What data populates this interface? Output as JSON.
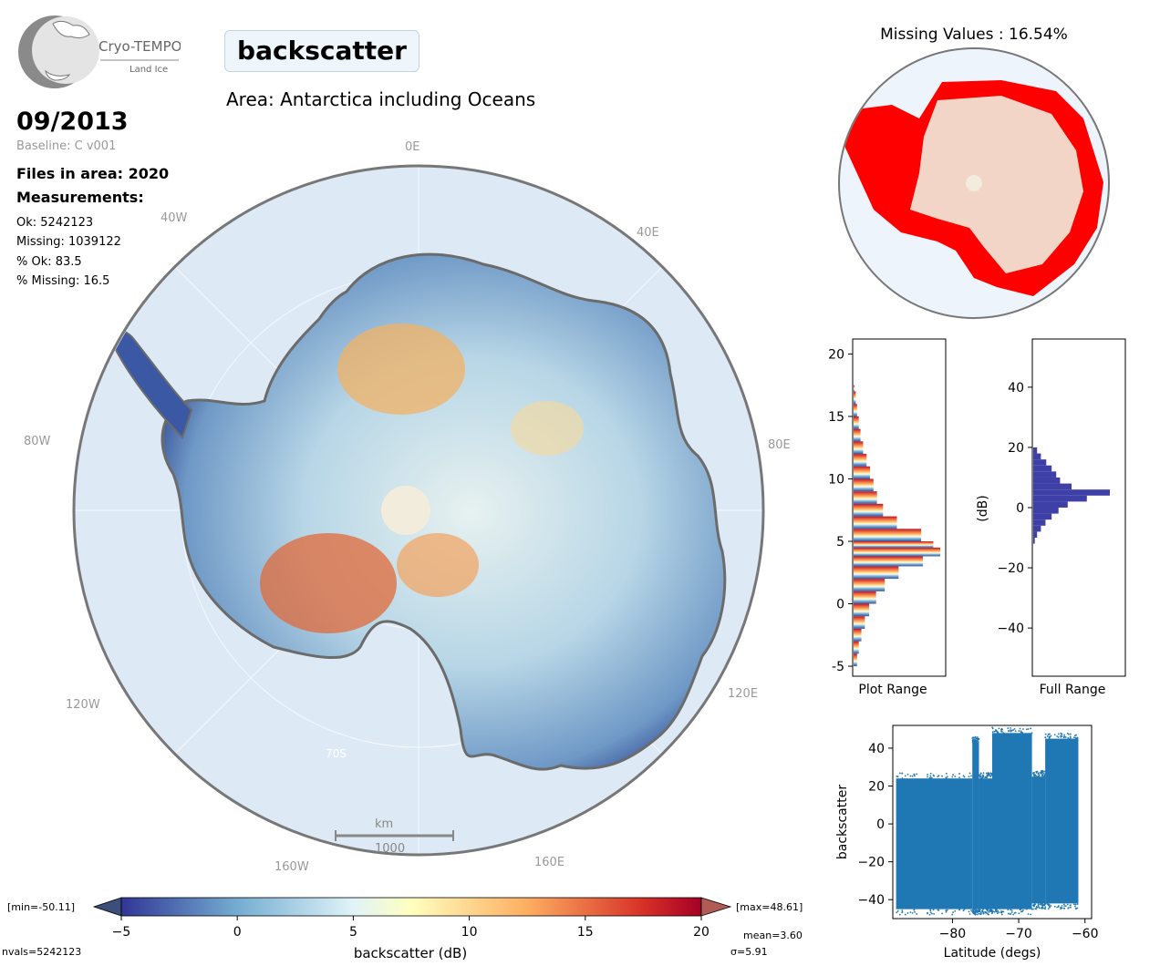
{
  "header": {
    "logo_title": "Cryo-TEMPO",
    "logo_subtitle": "Land Ice",
    "parameter": "backscatter",
    "area": "Area: Antarctica including Oceans",
    "date": "09/2013",
    "baseline": "Baseline: C v001",
    "files": "Files in area: 2020",
    "measurements_title": "Measurements:",
    "ok": "Ok: 5242123",
    "missing": "Missing: 1039122",
    "pct_ok": "% Ok: 83.5",
    "pct_missing": "% Missing: 16.5"
  },
  "map": {
    "lon_labels": [
      "0E",
      "40E",
      "80E",
      "120E",
      "160E",
      "160W",
      "120W",
      "80W",
      "40W"
    ],
    "lat_label": "70S",
    "scalebar_unit": "km",
    "scalebar_value": "1000"
  },
  "missing_map": {
    "title": "Missing Values : 16.54%"
  },
  "colorbar": {
    "min_label": "[min=-50.11]",
    "max_label": "[max=48.61]",
    "ticks": [
      "-5",
      "0",
      "5",
      "10",
      "15",
      "20"
    ],
    "label": "backscatter (dB)",
    "mean": "mean=3.60",
    "sigma": "σ=5.91",
    "nvals": "nvals=5242123"
  },
  "colors": {
    "ocean": "#dde9f5",
    "land_low": "#3b4fa0",
    "land_mid": "#cde6ef",
    "land_high": "#d9432f",
    "missing": "#ff0000",
    "full_hist": "#3f3fa8",
    "scatter": "#1f77b4"
  },
  "chart_data": [
    {
      "type": "bar",
      "title": "",
      "xlabel": "Plot Range",
      "ylabel": "",
      "ylim": [
        -5.8,
        21.2
      ],
      "yticks": [
        -5,
        0,
        5,
        10,
        15,
        20
      ],
      "x": [
        -5,
        -4,
        -3,
        -2,
        -1,
        0,
        1,
        2,
        3,
        3.8,
        4.5,
        5,
        6,
        7,
        8,
        9,
        10,
        11,
        12,
        13,
        14,
        15,
        16,
        17,
        17.5
      ],
      "values": [
        0.04,
        0.06,
        0.09,
        0.13,
        0.18,
        0.26,
        0.36,
        0.52,
        0.8,
        1.0,
        0.92,
        0.78,
        0.5,
        0.34,
        0.27,
        0.23,
        0.19,
        0.15,
        0.11,
        0.08,
        0.06,
        0.04,
        0.025,
        0.01,
        0.0
      ]
    },
    {
      "type": "bar",
      "title": "",
      "xlabel": "Full Range",
      "ylabel": "(dB)",
      "ylim": [
        -56,
        56
      ],
      "yticks": [
        -40,
        -20,
        0,
        20,
        40
      ],
      "x": [
        -12,
        -10,
        -8,
        -6,
        -4,
        -2,
        0,
        2,
        4,
        6,
        8,
        10,
        12,
        14,
        16,
        18,
        20
      ],
      "values": [
        0.02,
        0.05,
        0.1,
        0.16,
        0.24,
        0.33,
        0.45,
        0.7,
        1.0,
        0.5,
        0.35,
        0.3,
        0.24,
        0.17,
        0.1,
        0.05,
        0.02
      ]
    },
    {
      "type": "scatter",
      "title": "",
      "xlabel": "Latitude (degs)",
      "ylabel": "backscatter",
      "xlim": [
        -89,
        -59
      ],
      "ylim": [
        -50,
        52
      ],
      "xticks": [
        -80,
        -70,
        -60
      ],
      "yticks": [
        -40,
        -20,
        0,
        20,
        40
      ],
      "bands": [
        {
          "x": [
            -88.5,
            -77
          ],
          "y": [
            -45,
            24
          ]
        },
        {
          "x": [
            -77,
            -76
          ],
          "y": [
            -45,
            43
          ]
        },
        {
          "x": [
            -76,
            -74
          ],
          "y": [
            -45,
            24
          ]
        },
        {
          "x": [
            -74,
            -68
          ],
          "y": [
            -45,
            48
          ]
        },
        {
          "x": [
            -68,
            -66
          ],
          "y": [
            -42,
            25
          ]
        },
        {
          "x": [
            -66,
            -61
          ],
          "y": [
            -42,
            45
          ]
        }
      ]
    }
  ]
}
